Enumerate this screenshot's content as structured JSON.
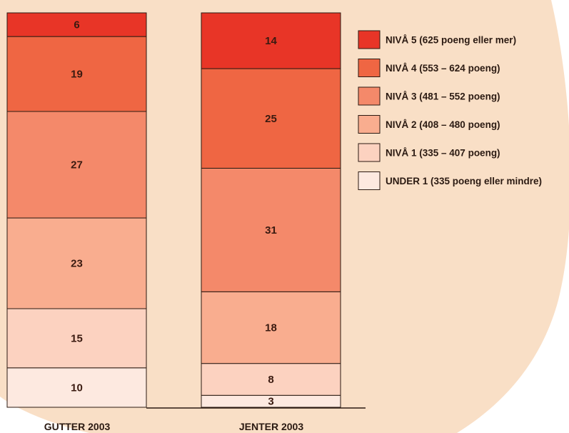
{
  "chart_data": {
    "type": "bar",
    "stacked": true,
    "categories": [
      "GUTTER 2003",
      "JENTER 2003"
    ],
    "series": [
      {
        "name": "UNDER 1 (335 poeng eller mindre)",
        "values": [
          10,
          3
        ],
        "color": "#fde9e0"
      },
      {
        "name": "NIVÅ 1 (335 – 407 poeng)",
        "values": [
          15,
          8
        ],
        "color": "#fcd2c0"
      },
      {
        "name": "NIVÅ 2 (408 – 480 poeng)",
        "values": [
          23,
          18
        ],
        "color": "#f9ad8f"
      },
      {
        "name": "NIVÅ 3 (481 – 552 poeng)",
        "values": [
          27,
          31
        ],
        "color": "#f4896a"
      },
      {
        "name": "NIVÅ 4 (553 – 624 poeng)",
        "values": [
          19,
          25
        ],
        "color": "#ef6643"
      },
      {
        "name": "NIVÅ 5 (625 poeng eller mer)",
        "values": [
          6,
          14
        ],
        "color": "#e83527"
      }
    ],
    "ylim": [
      0,
      100
    ],
    "background_color": "#f9dfc6",
    "legend_position": "right"
  }
}
